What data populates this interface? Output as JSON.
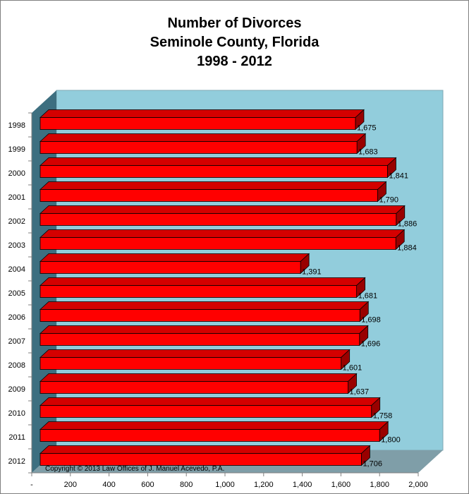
{
  "chart_data": {
    "type": "bar",
    "orientation": "horizontal",
    "style": "3d",
    "title_lines": [
      "Number of Divorces",
      "Seminole County, Florida",
      "1998 - 2012"
    ],
    "categories": [
      "1998",
      "1999",
      "2000",
      "2001",
      "2002",
      "2003",
      "2004",
      "2005",
      "2006",
      "2007",
      "2008",
      "2009",
      "2010",
      "2011",
      "2012"
    ],
    "values": [
      1675,
      1683,
      1841,
      1790,
      1886,
      1884,
      1391,
      1681,
      1698,
      1696,
      1601,
      1637,
      1758,
      1800,
      1706
    ],
    "value_labels": [
      "1,675",
      "1,683",
      "1,841",
      "1,790",
      "1,886",
      "1,884",
      "1,391",
      "1,681",
      "1,698",
      "1,696",
      "1,601",
      "1,637",
      "1,758",
      "1,800",
      "1,706"
    ],
    "xlim": [
      0,
      2000
    ],
    "x_ticks": [
      0,
      200,
      400,
      600,
      800,
      1000,
      1200,
      1400,
      1600,
      1800,
      2000
    ],
    "x_tick_labels": [
      "-",
      "200",
      "400",
      "600",
      "800",
      "1,000",
      "1,200",
      "1,400",
      "1,600",
      "1,800",
      "2,000"
    ],
    "xlabel": "",
    "ylabel": "",
    "legend": "none",
    "annotation": "Copyright © 2013 Law Offices of J. Manuel Acevedo, P.A.",
    "colors": {
      "bar_front": "#ff0000",
      "bar_top": "#d40000",
      "bar_side": "#990000",
      "back_wall": "#92cddc",
      "side_wall": "#3d6f80",
      "floor": "#7f9ea8"
    }
  }
}
